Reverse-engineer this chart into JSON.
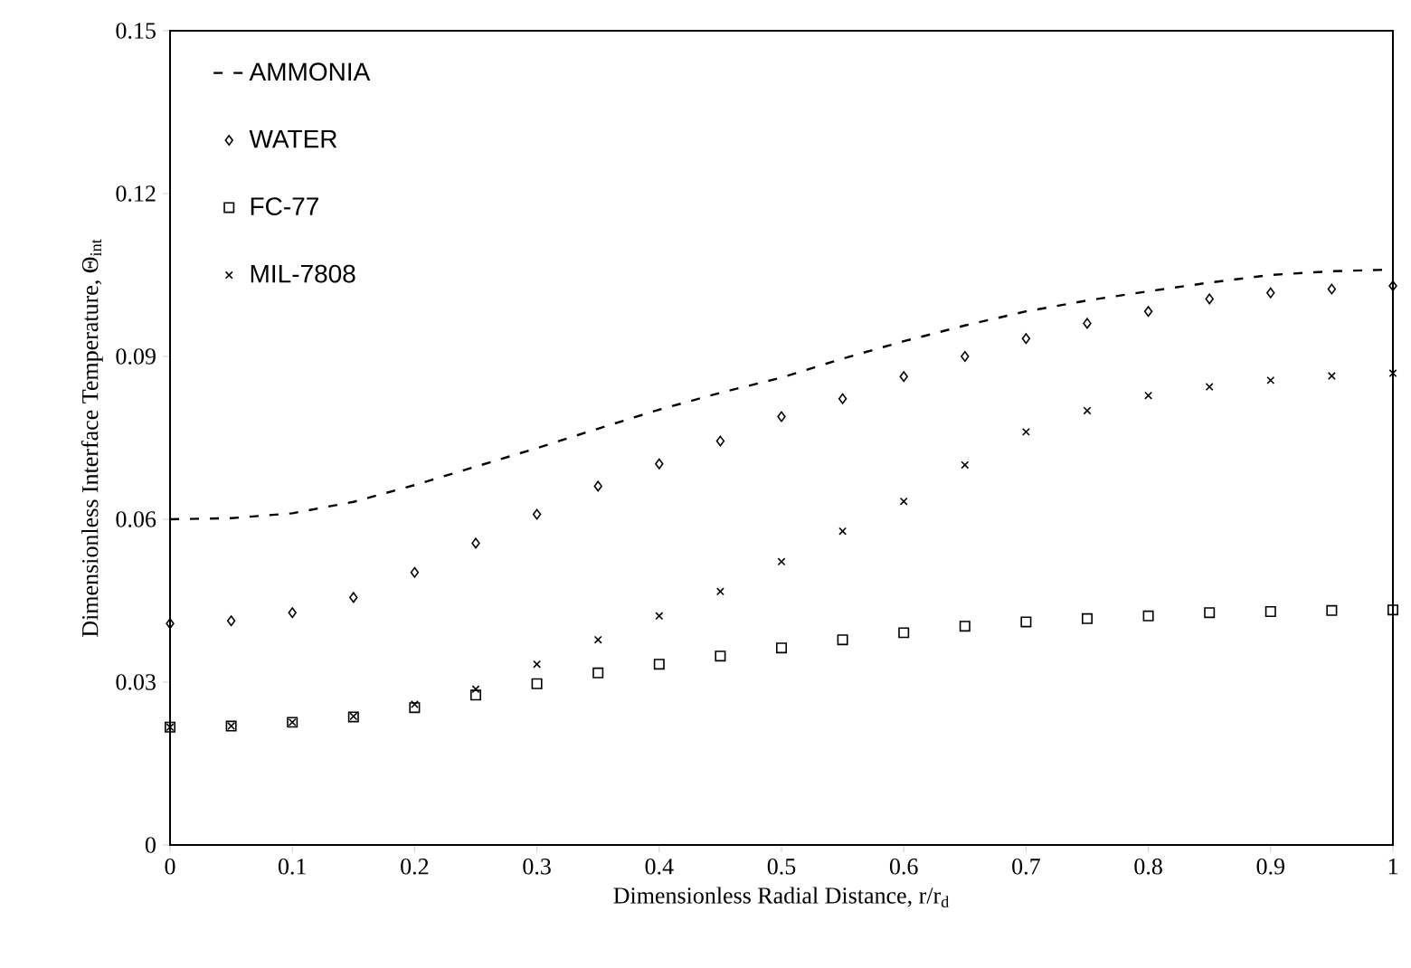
{
  "chart_data": {
    "type": "scatter",
    "xlabel": "Dimensionless Radial Distance, r/r$_{d}$",
    "ylabel": "Dimensionless Interface Temperature, Θ$_{int}$",
    "x": [
      0,
      0.05,
      0.1,
      0.15,
      0.2,
      0.25,
      0.3,
      0.35,
      0.4,
      0.45,
      0.5,
      0.55,
      0.6,
      0.65,
      0.7,
      0.75,
      0.8,
      0.85,
      0.9,
      0.95,
      1.0
    ],
    "series": [
      {
        "name": "AMMONIA",
        "type": "line",
        "line_style": "dashed",
        "marker": "none",
        "color": "#000000",
        "values": [
          0.06,
          0.0602,
          0.0611,
          0.0632,
          0.0663,
          0.0697,
          0.0731,
          0.0767,
          0.0802,
          0.0833,
          0.0861,
          0.0896,
          0.0928,
          0.0957,
          0.0983,
          0.1003,
          0.102,
          0.1036,
          0.105,
          0.1057,
          0.106
        ]
      },
      {
        "name": "WATER",
        "marker": "diamond",
        "color": "#000000",
        "values": [
          0.0408,
          0.0413,
          0.0428,
          0.0456,
          0.0502,
          0.0556,
          0.0609,
          0.0661,
          0.0702,
          0.0744,
          0.0789,
          0.0822,
          0.0863,
          0.09,
          0.0933,
          0.0961,
          0.0983,
          0.1006,
          0.1017,
          0.1024,
          0.103
        ]
      },
      {
        "name": "FC-77",
        "marker": "square",
        "color": "#000000",
        "values": [
          0.0217,
          0.0219,
          0.0226,
          0.0236,
          0.0253,
          0.0276,
          0.0297,
          0.0317,
          0.0333,
          0.0348,
          0.0363,
          0.0378,
          0.0391,
          0.0403,
          0.0411,
          0.0417,
          0.0422,
          0.0428,
          0.043,
          0.0432,
          0.0433
        ]
      },
      {
        "name": "MIL-7808",
        "marker": "cross",
        "color": "#000000",
        "values": [
          0.0217,
          0.0219,
          0.0226,
          0.0237,
          0.0259,
          0.0287,
          0.0333,
          0.0378,
          0.0422,
          0.0467,
          0.0522,
          0.0578,
          0.0633,
          0.07,
          0.0761,
          0.08,
          0.0828,
          0.0844,
          0.0856,
          0.0864,
          0.0869
        ]
      }
    ],
    "xlim": [
      0,
      1
    ],
    "ylim": [
      0,
      0.15
    ],
    "xticks": [
      0,
      0.1,
      0.2,
      0.3,
      0.4,
      0.5,
      0.6,
      0.7,
      0.8,
      0.9,
      1
    ],
    "yticks": [
      0,
      0.03,
      0.06,
      0.09,
      0.12,
      0.15
    ],
    "grid": false,
    "legend": "top left"
  }
}
